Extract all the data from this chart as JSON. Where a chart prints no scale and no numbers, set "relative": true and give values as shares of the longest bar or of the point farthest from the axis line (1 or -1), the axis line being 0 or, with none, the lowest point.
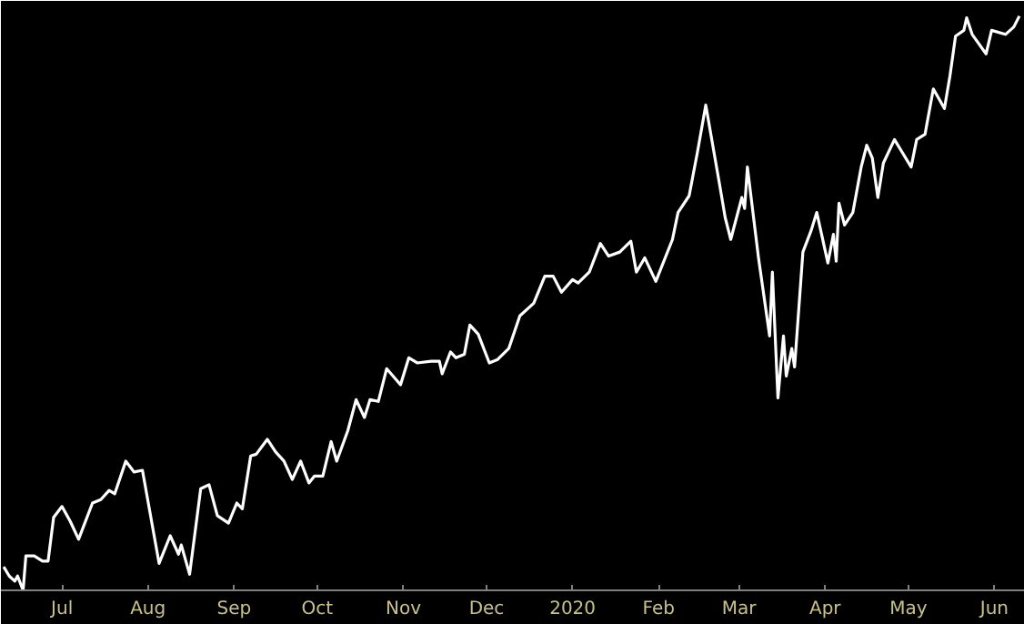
{
  "chart_data": {
    "type": "line",
    "relative": true,
    "grid": false,
    "xlim": [
      "2019-06-09",
      "2020-06-12"
    ],
    "xticks": [
      {
        "value": "2019-07-01",
        "label": "Jul"
      },
      {
        "value": "2019-08-01",
        "label": "Aug"
      },
      {
        "value": "2019-09-01",
        "label": "Sep"
      },
      {
        "value": "2019-10-01",
        "label": "Oct"
      },
      {
        "value": "2019-11-01",
        "label": "Nov"
      },
      {
        "value": "2019-12-01",
        "label": "Dec"
      },
      {
        "value": "2020-01-01",
        "label": "2020"
      },
      {
        "value": "2020-02-01",
        "label": "Feb"
      },
      {
        "value": "2020-03-01",
        "label": "Mar"
      },
      {
        "value": "2020-04-01",
        "label": "Apr"
      },
      {
        "value": "2020-05-01",
        "label": "May"
      },
      {
        "value": "2020-06-01",
        "label": "Jun"
      }
    ],
    "x": [
      "2019-06-10",
      "2019-06-12",
      "2019-06-14",
      "2019-06-15",
      "2019-06-17",
      "2019-06-18",
      "2019-06-21",
      "2019-06-24",
      "2019-06-26",
      "2019-06-28",
      "2019-07-01",
      "2019-07-04",
      "2019-07-07",
      "2019-07-12",
      "2019-07-15",
      "2019-07-18",
      "2019-07-20",
      "2019-07-24",
      "2019-07-27",
      "2019-07-30",
      "2019-08-05",
      "2019-08-09",
      "2019-08-12",
      "2019-08-13",
      "2019-08-16",
      "2019-08-20",
      "2019-08-23",
      "2019-08-26",
      "2019-08-30",
      "2019-09-02",
      "2019-09-04",
      "2019-09-07",
      "2019-09-09",
      "2019-09-13",
      "2019-09-16",
      "2019-09-19",
      "2019-09-22",
      "2019-09-25",
      "2019-09-28",
      "2019-09-30",
      "2019-10-03",
      "2019-10-06",
      "2019-10-08",
      "2019-10-12",
      "2019-10-15",
      "2019-10-18",
      "2019-10-20",
      "2019-10-23",
      "2019-10-26",
      "2019-10-31",
      "2019-11-03",
      "2019-11-06",
      "2019-11-11",
      "2019-11-14",
      "2019-11-15",
      "2019-11-18",
      "2019-11-20",
      "2019-11-23",
      "2019-11-25",
      "2019-11-28",
      "2019-12-02",
      "2019-12-05",
      "2019-12-09",
      "2019-12-13",
      "2019-12-18",
      "2019-12-22",
      "2019-12-25",
      "2019-12-28",
      "2020-01-01",
      "2020-01-03",
      "2020-01-07",
      "2020-01-11",
      "2020-01-14",
      "2020-01-18",
      "2020-01-22",
      "2020-01-24",
      "2020-01-27",
      "2020-01-31",
      "2020-02-06",
      "2020-02-08",
      "2020-02-12",
      "2020-02-15",
      "2020-02-18",
      "2020-02-23",
      "2020-02-25",
      "2020-02-27",
      "2020-03-02",
      "2020-03-03",
      "2020-03-04",
      "2020-03-08",
      "2020-03-12",
      "2020-03-13",
      "2020-03-15",
      "2020-03-17",
      "2020-03-18",
      "2020-03-20",
      "2020-03-21",
      "2020-03-24",
      "2020-03-27",
      "2020-03-29",
      "2020-04-02",
      "2020-04-04",
      "2020-04-05",
      "2020-04-06",
      "2020-04-08",
      "2020-04-11",
      "2020-04-14",
      "2020-04-16",
      "2020-04-18",
      "2020-04-20",
      "2020-04-22",
      "2020-04-26",
      "2020-04-28",
      "2020-05-02",
      "2020-05-04",
      "2020-05-07",
      "2020-05-10",
      "2020-05-14",
      "2020-05-16",
      "2020-05-18",
      "2020-05-21",
      "2020-05-22",
      "2020-05-24",
      "2020-05-29",
      "2020-05-31",
      "2020-06-05",
      "2020-06-08",
      "2020-06-10"
    ],
    "series": [
      {
        "color": "#ffffff",
        "values": [
          0.041,
          0.025,
          0.016,
          0.025,
          0,
          0.06,
          0.06,
          0.051,
          0.051,
          0.127,
          0.146,
          0.12,
          0.089,
          0.152,
          0.158,
          0.174,
          0.168,
          0.225,
          0.206,
          0.209,
          0.047,
          0.095,
          0.063,
          0.079,
          0.028,
          0.177,
          0.184,
          0.13,
          0.117,
          0.152,
          0.142,
          0.234,
          0.237,
          0.263,
          0.241,
          0.225,
          0.193,
          0.225,
          0.187,
          0.199,
          0.199,
          0.259,
          0.225,
          0.278,
          0.332,
          0.301,
          0.332,
          0.329,
          0.386,
          0.358,
          0.405,
          0.396,
          0.399,
          0.399,
          0.377,
          0.415,
          0.405,
          0.411,
          0.462,
          0.446,
          0.396,
          0.402,
          0.421,
          0.478,
          0.5,
          0.547,
          0.547,
          0.519,
          0.541,
          0.535,
          0.554,
          0.604,
          0.582,
          0.589,
          0.608,
          0.554,
          0.579,
          0.538,
          0.611,
          0.658,
          0.687,
          0.763,
          0.845,
          0.706,
          0.649,
          0.611,
          0.684,
          0.665,
          0.737,
          0.579,
          0.443,
          0.554,
          0.335,
          0.443,
          0.373,
          0.421,
          0.389,
          0.589,
          0.627,
          0.658,
          0.57,
          0.62,
          0.573,
          0.674,
          0.636,
          0.658,
          0.737,
          0.775,
          0.753,
          0.684,
          0.744,
          0.785,
          0.769,
          0.737,
          0.785,
          0.794,
          0.873,
          0.839,
          0.896,
          0.965,
          0.975,
          0.997,
          0.968,
          0.934,
          0.975,
          0.968,
          0.981,
          1.0
        ]
      }
    ]
  }
}
